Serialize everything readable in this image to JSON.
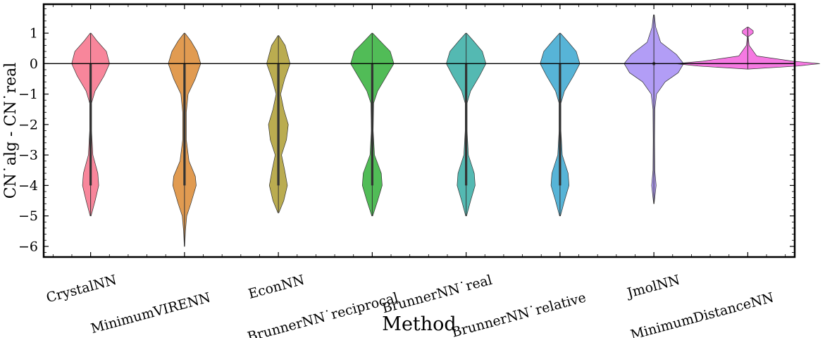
{
  "chart_data": {
    "type": "violin",
    "xlabel": "Method",
    "ylabel": "CN˙alg - CN˙real",
    "ylim": [
      -6.35,
      1.95
    ],
    "yticks": [
      1,
      0,
      -1,
      -2,
      -3,
      -4,
      -5,
      -6
    ],
    "ytick_labels": [
      "1",
      "0",
      "−1",
      "−2",
      "−3",
      "−4",
      "−5",
      "−6"
    ],
    "reference_line_y": 0,
    "grid": false,
    "legend": "none",
    "categories": [
      "CrystalNN",
      "MinimumVIRENN",
      "EconNN",
      "BrunnerNN˙reciprocal",
      "BrunnerNN˙real",
      "BrunnerNN˙relative",
      "JmolNN",
      "MinimumDistanceNN"
    ],
    "series": [
      {
        "color": "#f77189",
        "range": [
          -5.0,
          1.0
        ],
        "box": [
          -4.0,
          0.0
        ],
        "profile": [
          [
            1.0,
            0.01
          ],
          [
            0.75,
            0.14
          ],
          [
            0.4,
            0.35
          ],
          [
            0.0,
            0.42
          ],
          [
            -0.4,
            0.3
          ],
          [
            -0.9,
            0.1
          ],
          [
            -1.3,
            0.02
          ],
          [
            -2.2,
            0.02
          ],
          [
            -3.0,
            0.05
          ],
          [
            -3.6,
            0.16
          ],
          [
            -4.0,
            0.18
          ],
          [
            -4.5,
            0.1
          ],
          [
            -5.0,
            0.01
          ]
        ]
      },
      {
        "color": "#dc8932",
        "range": [
          -6.0,
          1.0
        ],
        "box": [
          -4.0,
          0.0
        ],
        "profile": [
          [
            1.0,
            0.01
          ],
          [
            0.75,
            0.14
          ],
          [
            0.4,
            0.28
          ],
          [
            0.0,
            0.36
          ],
          [
            -0.5,
            0.24
          ],
          [
            -1.0,
            0.08
          ],
          [
            -1.6,
            0.04
          ],
          [
            -2.5,
            0.04
          ],
          [
            -3.2,
            0.1
          ],
          [
            -3.7,
            0.24
          ],
          [
            -4.0,
            0.26
          ],
          [
            -4.6,
            0.14
          ],
          [
            -5.0,
            0.05
          ],
          [
            -5.5,
            0.02
          ],
          [
            -6.0,
            0.005
          ]
        ]
      },
      {
        "color": "#ae9d31",
        "range": [
          -4.9,
          0.92
        ],
        "box": [
          -4.0,
          0.0
        ],
        "profile": [
          [
            0.92,
            0.01
          ],
          [
            0.6,
            0.15
          ],
          [
            0.0,
            0.26
          ],
          [
            -0.5,
            0.14
          ],
          [
            -1.0,
            0.05
          ],
          [
            -1.5,
            0.12
          ],
          [
            -2.0,
            0.22
          ],
          [
            -2.5,
            0.18
          ],
          [
            -3.0,
            0.07
          ],
          [
            -3.5,
            0.14
          ],
          [
            -4.0,
            0.2
          ],
          [
            -4.5,
            0.12
          ],
          [
            -4.9,
            0.01
          ]
        ]
      },
      {
        "color": "#33b039",
        "range": [
          -5.0,
          1.0
        ],
        "box": [
          -4.0,
          0.0
        ],
        "profile": [
          [
            1.0,
            0.01
          ],
          [
            0.75,
            0.17
          ],
          [
            0.4,
            0.4
          ],
          [
            0.0,
            0.48
          ],
          [
            -0.4,
            0.32
          ],
          [
            -0.9,
            0.12
          ],
          [
            -1.3,
            0.03
          ],
          [
            -2.2,
            0.02
          ],
          [
            -3.0,
            0.05
          ],
          [
            -3.6,
            0.2
          ],
          [
            -4.0,
            0.22
          ],
          [
            -4.5,
            0.12
          ],
          [
            -5.0,
            0.01
          ]
        ]
      },
      {
        "color": "#36ada4",
        "range": [
          -5.0,
          1.0
        ],
        "box": [
          -4.0,
          0.0
        ],
        "profile": [
          [
            1.0,
            0.01
          ],
          [
            0.75,
            0.16
          ],
          [
            0.4,
            0.36
          ],
          [
            0.0,
            0.44
          ],
          [
            -0.4,
            0.3
          ],
          [
            -0.9,
            0.1
          ],
          [
            -1.3,
            0.02
          ],
          [
            -2.2,
            0.02
          ],
          [
            -3.0,
            0.05
          ],
          [
            -3.6,
            0.18
          ],
          [
            -4.0,
            0.2
          ],
          [
            -4.5,
            0.1
          ],
          [
            -5.0,
            0.01
          ]
        ]
      },
      {
        "color": "#39a7d0",
        "range": [
          -5.0,
          1.0
        ],
        "box": [
          -4.0,
          0.0
        ],
        "profile": [
          [
            1.0,
            0.01
          ],
          [
            0.75,
            0.16
          ],
          [
            0.4,
            0.36
          ],
          [
            0.0,
            0.44
          ],
          [
            -0.4,
            0.3
          ],
          [
            -0.9,
            0.1
          ],
          [
            -1.3,
            0.02
          ],
          [
            -2.2,
            0.02
          ],
          [
            -3.0,
            0.05
          ],
          [
            -3.6,
            0.18
          ],
          [
            -4.0,
            0.2
          ],
          [
            -4.5,
            0.1
          ],
          [
            -5.0,
            0.01
          ]
        ]
      },
      {
        "color": "#a48cf4",
        "range": [
          -4.6,
          1.6
        ],
        "box": [
          -0.05,
          0.05
        ],
        "profile": [
          [
            1.6,
            0.01
          ],
          [
            1.2,
            0.04
          ],
          [
            0.7,
            0.15
          ],
          [
            0.3,
            0.5
          ],
          [
            0.0,
            0.66
          ],
          [
            -0.3,
            0.54
          ],
          [
            -0.6,
            0.25
          ],
          [
            -1.0,
            0.06
          ],
          [
            -1.5,
            0.02
          ],
          [
            -2.5,
            0.015
          ],
          [
            -3.5,
            0.02
          ],
          [
            -4.0,
            0.05
          ],
          [
            -4.6,
            0.005
          ]
        ]
      },
      {
        "color": "#f561dd",
        "range": [
          -0.18,
          1.2
        ],
        "box": [
          -0.02,
          0.02
        ],
        "profile": [
          [
            1.2,
            0.01
          ],
          [
            1.08,
            0.12
          ],
          [
            1.0,
            0.12
          ],
          [
            0.88,
            0.01
          ],
          [
            0.6,
            0.03
          ],
          [
            0.25,
            0.2
          ],
          [
            0.08,
            1.0
          ],
          [
            0.0,
            1.6
          ],
          [
            -0.08,
            1.1
          ],
          [
            -0.18,
            0.01
          ]
        ]
      }
    ]
  }
}
